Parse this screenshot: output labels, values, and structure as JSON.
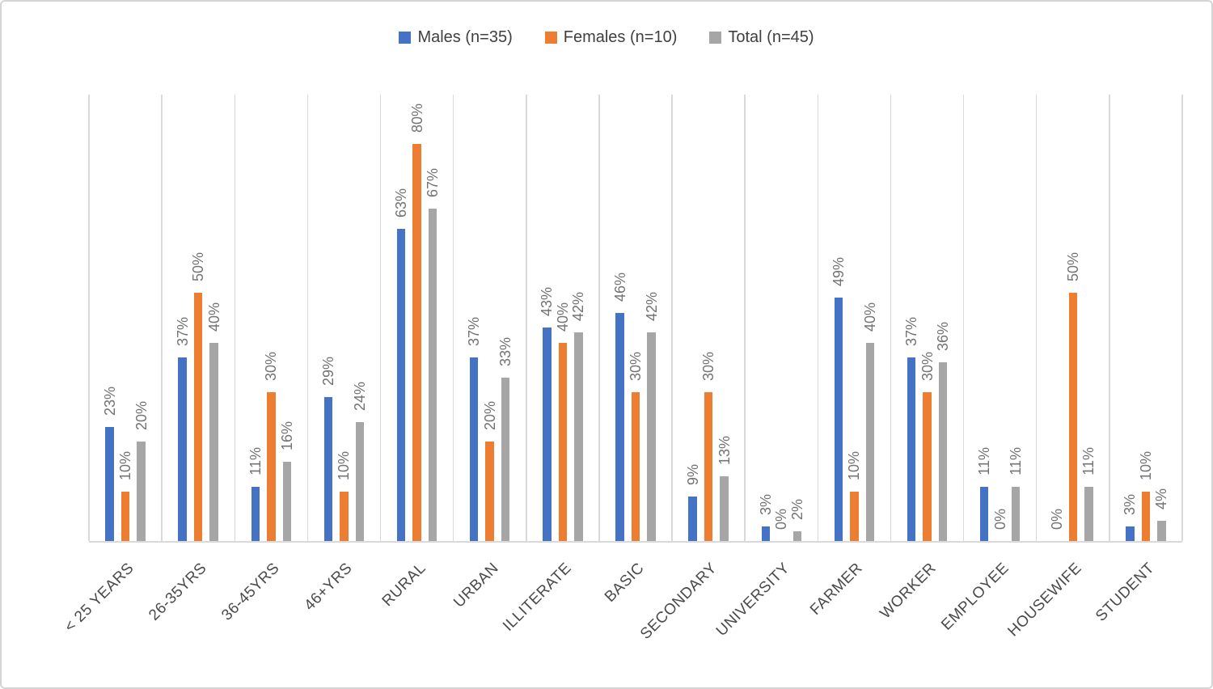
{
  "chart_data": {
    "type": "bar",
    "title": "",
    "categories": [
      "< 25 YEARS",
      "26-35YRS",
      "36-45YRS",
      "46+YRS",
      "RURAL",
      "URBAN",
      "ILLITERATE",
      "BASIC",
      "SECONDARY",
      "UNIVERSITY",
      "FARMER",
      "WORKER",
      "EMPLOYEE",
      "HOUSEWIFE",
      "STUDENT"
    ],
    "series": [
      {
        "name": "Males (n=35)",
        "color": "#4472C4",
        "values": [
          23,
          37,
          11,
          29,
          63,
          37,
          43,
          46,
          9,
          3,
          49,
          37,
          11,
          0,
          3
        ]
      },
      {
        "name": "Females (n=10)",
        "color": "#ED7D31",
        "values": [
          10,
          50,
          30,
          10,
          80,
          20,
          40,
          30,
          30,
          0,
          10,
          30,
          0,
          50,
          10
        ]
      },
      {
        "name": "Total (n=45)",
        "color": "#A6A6A6",
        "values": [
          20,
          40,
          16,
          24,
          67,
          33,
          42,
          42,
          13,
          2,
          40,
          36,
          11,
          11,
          4
        ]
      }
    ],
    "data_label_suffix": "%",
    "data_labels": "outside-end, rotated 90 degrees",
    "xlabel": "",
    "ylabel": "",
    "ylim": [
      0,
      90
    ],
    "y_axis_labels_visible": false,
    "legend_position": "top-center",
    "gridlines": "vertical category separators only"
  },
  "theme": {
    "background": "#FFFFFF",
    "frame_border": "#D5D5D5",
    "gridline_color": "#D9D9D9",
    "axis_line_color": "#D9D9D9",
    "data_label_color": "#737373",
    "category_label_color": "#4A4A4A",
    "legend_text_color": "#404040"
  }
}
